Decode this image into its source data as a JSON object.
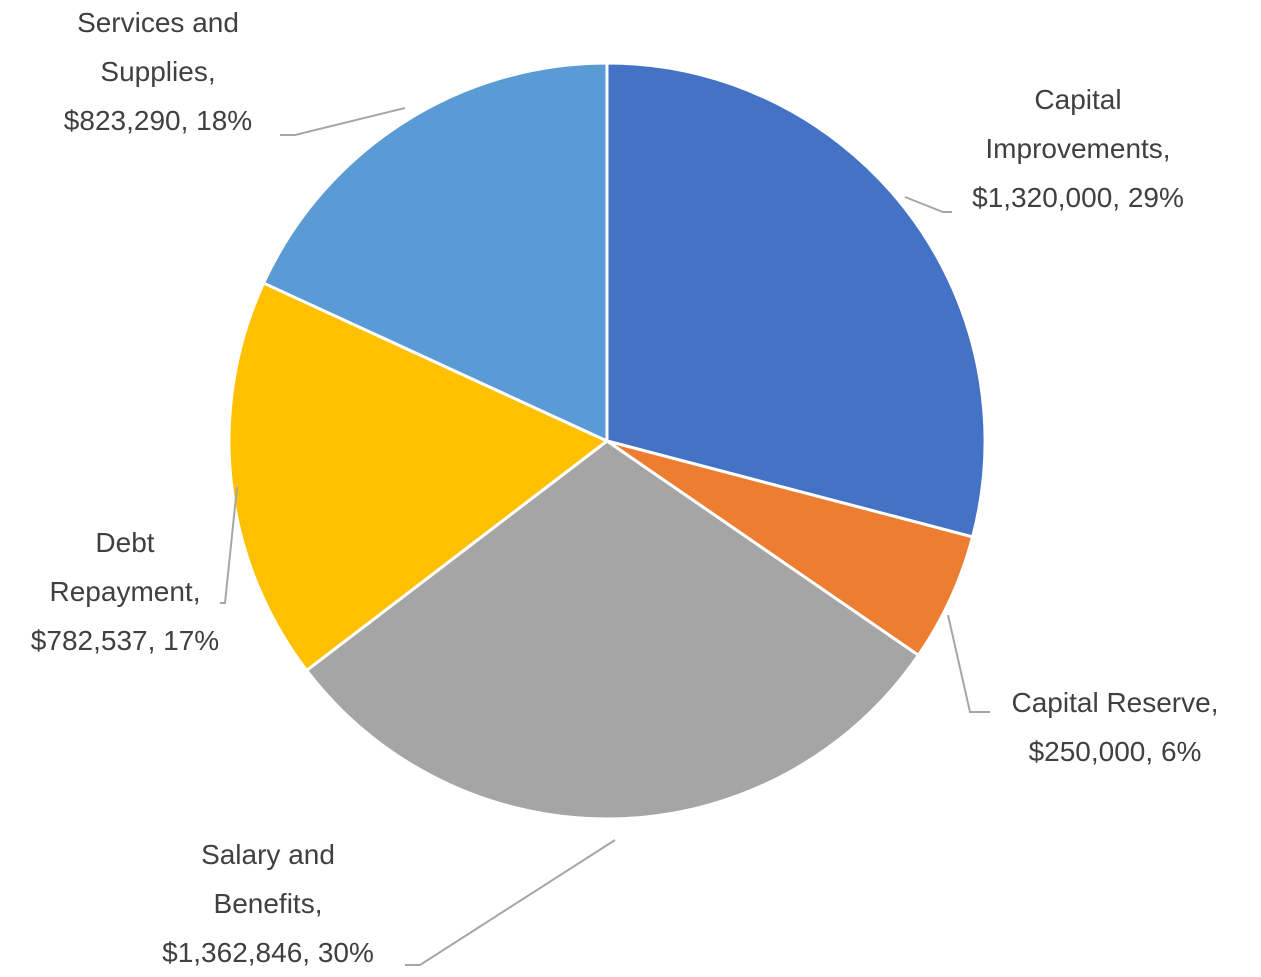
{
  "chart_data": {
    "type": "pie",
    "values": [
      1320000,
      250000,
      1362846,
      782537,
      823290
    ],
    "data_labels": [
      "Capital Improvements, $1,320,000, 29%",
      "Capital Reserve, $250,000, 6%",
      "Salary and Benefits, $1,362,846, 30%",
      "Debt Repayment, $782,537, 17%",
      "Services and Supplies, $823,290, 18%"
    ],
    "colors": [
      "#4472c4",
      "#ed7d31",
      "#a5a5a5",
      "#ffc000",
      "#5b9bd5"
    ]
  }
}
